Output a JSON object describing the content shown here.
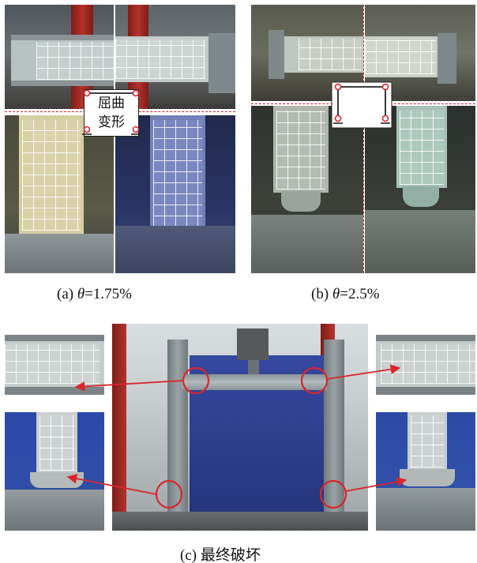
{
  "panels": {
    "a": {
      "label_prefix": "(a) ",
      "theta": "θ",
      "label_suffix": "=1.75%"
    },
    "b": {
      "label_prefix": "(b) ",
      "theta": "θ",
      "label_suffix": "=2.5%"
    },
    "c": {
      "label": "(c) 最终破坏"
    }
  },
  "callout": {
    "line1": "屈曲",
    "line2": "变形"
  },
  "colors": {
    "steel_grey": "#8e979c",
    "red_column": "#a82a25",
    "blue_curtain": "#2c3f8c",
    "annotation_red": "#d8262c"
  }
}
